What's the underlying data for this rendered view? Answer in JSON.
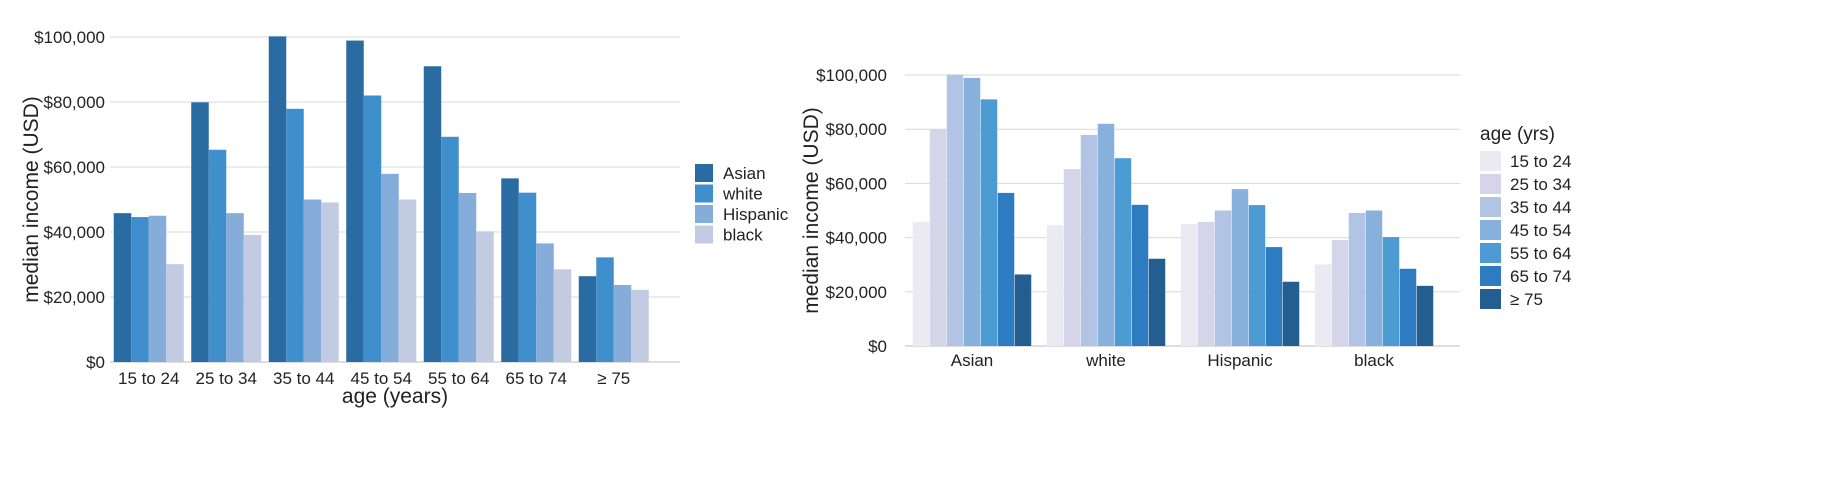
{
  "chart_data": [
    {
      "type": "bar",
      "categories": [
        "15 to 24",
        "25 to 34",
        "35 to 44",
        "45 to 54",
        "55 to 64",
        "65 to 74",
        "≥ 75"
      ],
      "series": [
        {
          "name": "Asian",
          "color": "#2a6ba2",
          "values": [
            45800,
            79900,
            100200,
            98900,
            91000,
            56500,
            26400
          ]
        },
        {
          "name": "white",
          "color": "#3e8fcb",
          "values": [
            44600,
            65300,
            77900,
            82000,
            69300,
            52100,
            32200
          ]
        },
        {
          "name": "Hispanic",
          "color": "#86acd9",
          "values": [
            45000,
            45800,
            50000,
            57900,
            52000,
            36500,
            23700
          ]
        },
        {
          "name": "black",
          "color": "#c3cbe3",
          "values": [
            30100,
            39100,
            49100,
            50000,
            40200,
            28500,
            22200
          ]
        }
      ],
      "xlabel": "age (years)",
      "ylabel": "median income (USD)",
      "ylim": [
        0,
        100000
      ],
      "yticks": [
        0,
        20000,
        40000,
        60000,
        80000,
        100000
      ],
      "ytick_labels": [
        "$0",
        "$20,000",
        "$40,000",
        "$60,000",
        "$80,000",
        "$100,000"
      ],
      "grid": true,
      "legend": {
        "title": "",
        "position": "right"
      }
    },
    {
      "type": "bar",
      "categories": [
        "Asian",
        "white",
        "Hispanic",
        "black"
      ],
      "series": [
        {
          "name": "15 to 24",
          "color": "#ebeaf3",
          "values": [
            45800,
            44600,
            45000,
            30100
          ]
        },
        {
          "name": "25 to 34",
          "color": "#d4d5e9",
          "values": [
            79900,
            65300,
            45800,
            39100
          ]
        },
        {
          "name": "35 to 44",
          "color": "#b2c4e3",
          "values": [
            100200,
            77900,
            50000,
            49100
          ]
        },
        {
          "name": "45 to 54",
          "color": "#87b1dc",
          "values": [
            98900,
            82000,
            57900,
            50000
          ]
        },
        {
          "name": "55 to 64",
          "color": "#4d9bd3",
          "values": [
            91000,
            69300,
            52000,
            40200
          ]
        },
        {
          "name": "65 to 74",
          "color": "#2d7bc0",
          "values": [
            56500,
            52100,
            36500,
            28500
          ]
        },
        {
          "name": "≥ 75",
          "color": "#245d90",
          "values": [
            26400,
            32200,
            23700,
            22200
          ]
        }
      ],
      "xlabel": "",
      "ylabel": "median income (USD)",
      "ylim": [
        0,
        100000
      ],
      "yticks": [
        0,
        20000,
        40000,
        60000,
        80000,
        100000
      ],
      "ytick_labels": [
        "$0",
        "$20,000",
        "$40,000",
        "$60,000",
        "$80,000",
        "$100,000"
      ],
      "grid": true,
      "legend": {
        "title": "age (yrs)",
        "position": "right"
      }
    }
  ]
}
